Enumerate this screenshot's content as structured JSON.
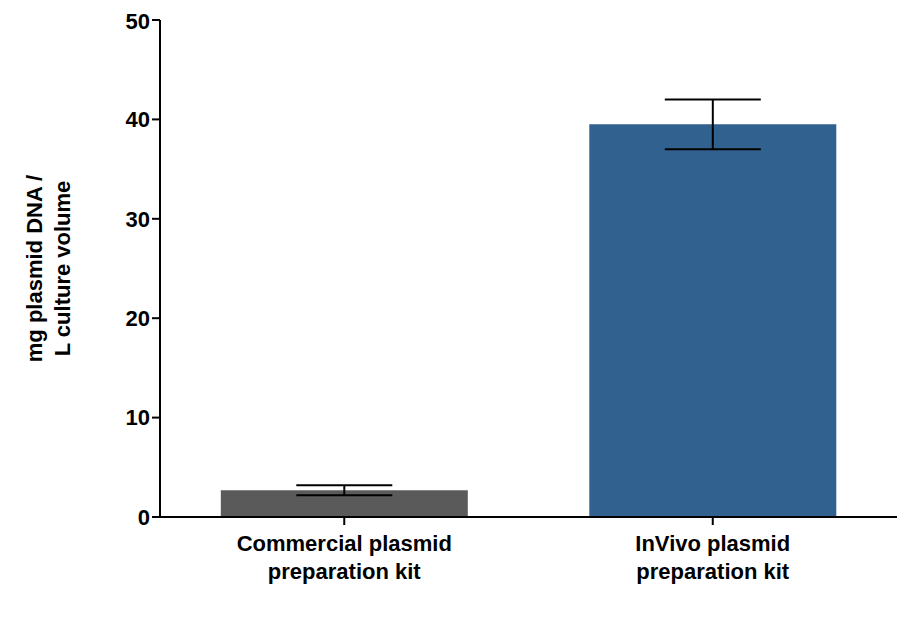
{
  "chart_data": {
    "type": "bar",
    "y_label": "mg plasmid DNA / L culture volume",
    "categories": [
      "Commercial plasmid preparation kit",
      "InVivo plasmid preparation kit"
    ],
    "values": [
      2.7,
      39.5
    ],
    "errors": [
      0.5,
      2.5
    ],
    "colors": [
      "#5a5a5a",
      "#30618f"
    ],
    "ylim": [
      0,
      50
    ],
    "yticks": [
      0,
      10,
      20,
      30,
      40,
      50
    ],
    "grid": false
  }
}
